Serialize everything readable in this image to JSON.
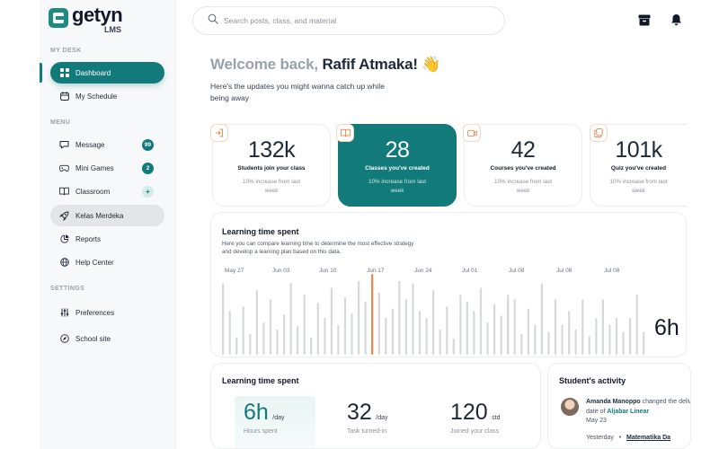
{
  "brand": {
    "name": "getyn",
    "sub": "LMS"
  },
  "sidebar": {
    "sections": [
      {
        "label": "MY DESK"
      },
      {
        "label": "MENU"
      },
      {
        "label": "SETTINGS"
      }
    ],
    "items": [
      {
        "label": "Dashboard",
        "icon": "grid-icon",
        "state": "active"
      },
      {
        "label": "My Schedule",
        "icon": "calendar-icon"
      },
      {
        "label": "Message",
        "icon": "chat-icon",
        "badge": "99"
      },
      {
        "label": "Mini Games",
        "icon": "gamepad-icon",
        "badge": "2"
      },
      {
        "label": "Classroom",
        "icon": "book-icon",
        "badge": "+"
      },
      {
        "label": "Kelas Merdeka",
        "icon": "rocket-icon",
        "state": "selected"
      },
      {
        "label": "Reports",
        "icon": "pie-icon"
      },
      {
        "label": "Help Center",
        "icon": "globe-icon"
      },
      {
        "label": "Preferences",
        "icon": "sliders-icon"
      },
      {
        "label": "School site",
        "icon": "compass-icon"
      }
    ]
  },
  "header": {
    "search_placeholder": "Search posts, class, and material"
  },
  "welcome": {
    "greeting": "Welcome back,",
    "name": "Rafif Atmaka!",
    "emoji": "👋",
    "subtitle": "Here's the updates you might wanna catch up while being away"
  },
  "stats": [
    {
      "value": "132k",
      "label": "Students join your class",
      "note": "10% increase from last week"
    },
    {
      "value": "28",
      "label": "Classes you've created",
      "note": "10% increase from last week"
    },
    {
      "value": "42",
      "label": "Courses you've created",
      "note": "10% increase from last week"
    },
    {
      "value": "101k",
      "label": "Quiz you've created",
      "note": "10% increase from last week"
    }
  ],
  "learning": {
    "title": "Learning time spent",
    "description": "Here you can compare learning time to determine the most effective strategy and develop a learning plan based on this data.",
    "value": "6h",
    "x_labels": [
      "May 27",
      "Jun 03",
      "Jun 10",
      "Jun 17",
      "Jun 24",
      "Jul 01",
      "Jul 08",
      "Jul 08",
      "Jul 08"
    ]
  },
  "chart_data": {
    "type": "bar",
    "bar_color": "#d6d8dc",
    "highlight_color": "#e8834a",
    "highlight_index": 22,
    "values": [
      62,
      38,
      15,
      42,
      18,
      56,
      28,
      48,
      22,
      35,
      62,
      25,
      52,
      15,
      45,
      32,
      58,
      26,
      50,
      36,
      64,
      46,
      70,
      54,
      32,
      40,
      64,
      48,
      62,
      38,
      32,
      56,
      22,
      42,
      14,
      52,
      46,
      38,
      58,
      28,
      44,
      34,
      52,
      48,
      18,
      40,
      26,
      62,
      20,
      48,
      26,
      38,
      22,
      48,
      16,
      32,
      48,
      26,
      32,
      20,
      32,
      52,
      20
    ]
  },
  "summary": {
    "title": "Learning time spent",
    "metrics": [
      {
        "value": "6h",
        "unit": "/day",
        "label": "Hours spent"
      },
      {
        "value": "32",
        "unit": "/day",
        "label": "Task turned-in"
      },
      {
        "value": "120",
        "unit": "std",
        "label": "Joined your class"
      }
    ]
  },
  "activity": {
    "title": "Student's activity",
    "items": [
      {
        "name": "Amanda Manoppo",
        "action": "changed the delivery date of",
        "target": "Aljabar Linear",
        "date": "May 23",
        "day": "Yesterday",
        "course": "Matematika Da"
      }
    ]
  }
}
